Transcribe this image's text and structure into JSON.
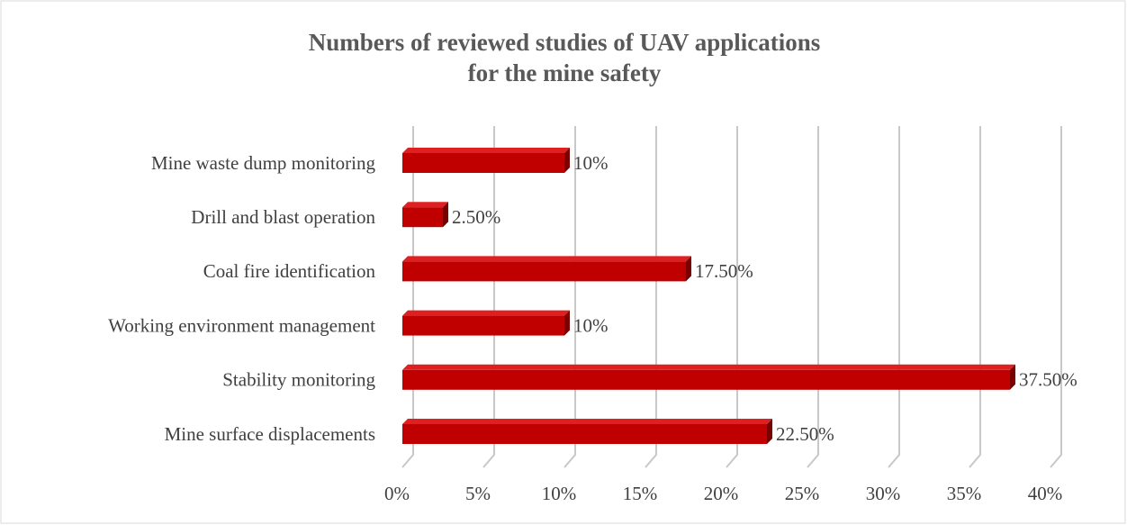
{
  "chart_data": {
    "type": "bar3d_horizontal",
    "title": [
      "Numbers of reviewed studies of UAV applications",
      "for the mine safety"
    ],
    "categories": [
      "Mine waste dump monitoring",
      "Drill and blast operation",
      "Coal fire identification",
      "Working environment management",
      "Stability monitoring",
      "Mine surface displacements"
    ],
    "values": [
      10,
      2.5,
      17.5,
      10,
      37.5,
      22.5
    ],
    "value_labels": [
      "10%",
      "2.50%",
      "17.50%",
      "10%",
      "37.50%",
      "22.50%"
    ],
    "color": "#c00000",
    "xlim": [
      0,
      40
    ],
    "xticks": [
      {
        "value": 0,
        "label": "0%"
      },
      {
        "value": 5,
        "label": "5%"
      },
      {
        "value": 10,
        "label": "10%"
      },
      {
        "value": 15,
        "label": "15%"
      },
      {
        "value": 20,
        "label": "20%"
      },
      {
        "value": 25,
        "label": "25%"
      },
      {
        "value": 30,
        "label": "30%"
      },
      {
        "value": 35,
        "label": "35%"
      },
      {
        "value": 40,
        "label": "40%"
      }
    ],
    "grid": true
  }
}
